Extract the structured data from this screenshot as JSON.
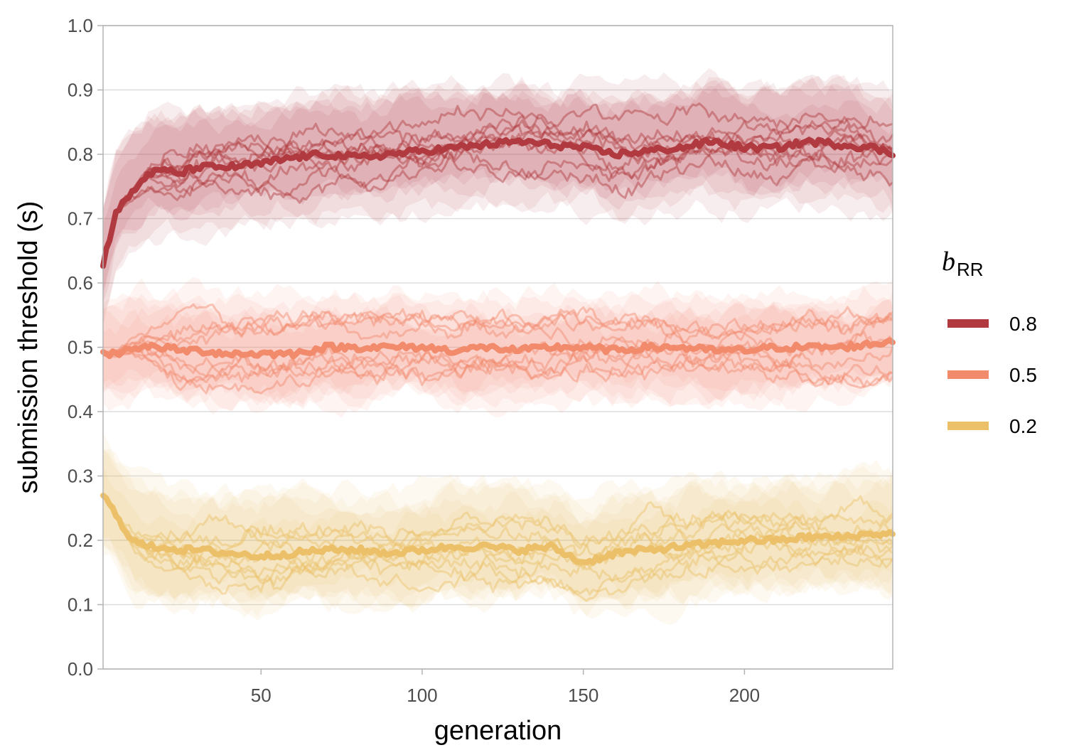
{
  "chart_data": {
    "type": "line",
    "xlabel": "generation",
    "ylabel": "submission threshold (s)",
    "xlim": [
      1,
      246
    ],
    "ylim": [
      0,
      1
    ],
    "x_ticks": [
      50,
      100,
      150,
      200
    ],
    "y_ticks": [
      0.0,
      0.1,
      0.2,
      0.3,
      0.4,
      0.5,
      0.6,
      0.7,
      0.8,
      0.9,
      1.0
    ],
    "x_tick_labels": [
      "50",
      "100",
      "150",
      "200"
    ],
    "y_tick_labels": [
      "0.0",
      "0.1",
      "0.2",
      "0.3",
      "0.4",
      "0.5",
      "0.6",
      "0.7",
      "0.8",
      "0.9",
      "1.0"
    ],
    "grid": "horizontal",
    "legend": {
      "placement": "right",
      "title_main": "b",
      "title_sub": "RR",
      "entries": [
        {
          "label": "0.8",
          "color": "#b03a3f"
        },
        {
          "label": "0.5",
          "color": "#f28a6c"
        },
        {
          "label": "0.2",
          "color": "#ecc068"
        }
      ]
    },
    "series": [
      {
        "name": "0.8",
        "color": "#b03a3f",
        "x": [
          1,
          5,
          10,
          15,
          20,
          25,
          30,
          40,
          50,
          60,
          70,
          80,
          90,
          100,
          110,
          120,
          130,
          140,
          150,
          160,
          170,
          180,
          190,
          200,
          210,
          220,
          230,
          240,
          246
        ],
        "mean": [
          0.63,
          0.71,
          0.74,
          0.77,
          0.775,
          0.77,
          0.78,
          0.78,
          0.785,
          0.795,
          0.8,
          0.795,
          0.8,
          0.805,
          0.81,
          0.815,
          0.82,
          0.815,
          0.81,
          0.8,
          0.805,
          0.81,
          0.82,
          0.81,
          0.81,
          0.82,
          0.815,
          0.81,
          0.8
        ],
        "run_spread": 0.05,
        "band_halfwidth": 0.08
      },
      {
        "name": "0.5",
        "color": "#f28a6c",
        "x": [
          1,
          5,
          10,
          15,
          20,
          25,
          30,
          40,
          50,
          60,
          70,
          80,
          90,
          100,
          110,
          120,
          130,
          140,
          150,
          160,
          170,
          180,
          190,
          200,
          210,
          220,
          230,
          240,
          246
        ],
        "mean": [
          0.49,
          0.49,
          0.5,
          0.5,
          0.5,
          0.495,
          0.495,
          0.49,
          0.49,
          0.49,
          0.5,
          0.5,
          0.5,
          0.5,
          0.495,
          0.5,
          0.495,
          0.5,
          0.5,
          0.495,
          0.5,
          0.5,
          0.495,
          0.495,
          0.5,
          0.5,
          0.5,
          0.505,
          0.51
        ],
        "run_spread": 0.04,
        "band_halfwidth": 0.07
      },
      {
        "name": "0.2",
        "color": "#ecc068",
        "x": [
          1,
          5,
          10,
          15,
          20,
          25,
          30,
          40,
          50,
          60,
          70,
          80,
          90,
          100,
          110,
          120,
          130,
          140,
          150,
          160,
          170,
          180,
          190,
          200,
          210,
          220,
          230,
          240,
          246
        ],
        "mean": [
          0.27,
          0.24,
          0.2,
          0.19,
          0.19,
          0.185,
          0.185,
          0.18,
          0.175,
          0.18,
          0.185,
          0.185,
          0.18,
          0.185,
          0.19,
          0.19,
          0.185,
          0.19,
          0.165,
          0.18,
          0.185,
          0.19,
          0.195,
          0.2,
          0.2,
          0.205,
          0.205,
          0.21,
          0.21
        ],
        "run_spread": 0.04,
        "band_halfwidth": 0.07
      }
    ]
  }
}
